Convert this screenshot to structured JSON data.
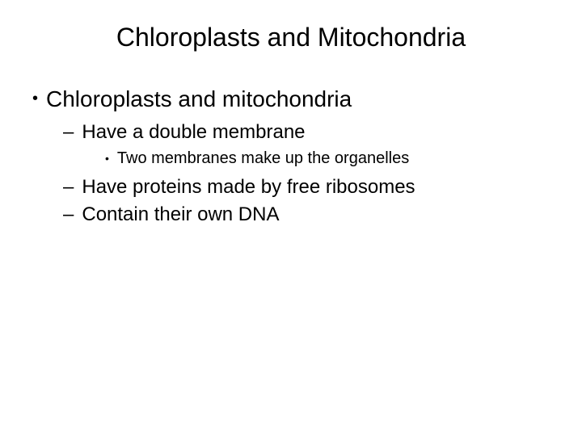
{
  "title": "Chloroplasts and Mitochondria",
  "bullets": {
    "b1": {
      "mark": "•",
      "text": "Chloroplasts and mitochondria"
    },
    "b2": {
      "mark": "–",
      "text": "Have a double membrane"
    },
    "b3": {
      "mark": "•",
      "text": "Two membranes make up the organelles"
    },
    "b4": {
      "mark": "–",
      "text": "Have proteins made by free ribosomes"
    },
    "b5": {
      "mark": "–",
      "text": "Contain their own DNA"
    }
  },
  "colors": {
    "background": "#ffffff",
    "text": "#000000"
  },
  "typography": {
    "font_family": "Arial",
    "title_size_pt": 24,
    "level1_size_pt": 21,
    "level2_size_pt": 18,
    "level3_size_pt": 15
  }
}
